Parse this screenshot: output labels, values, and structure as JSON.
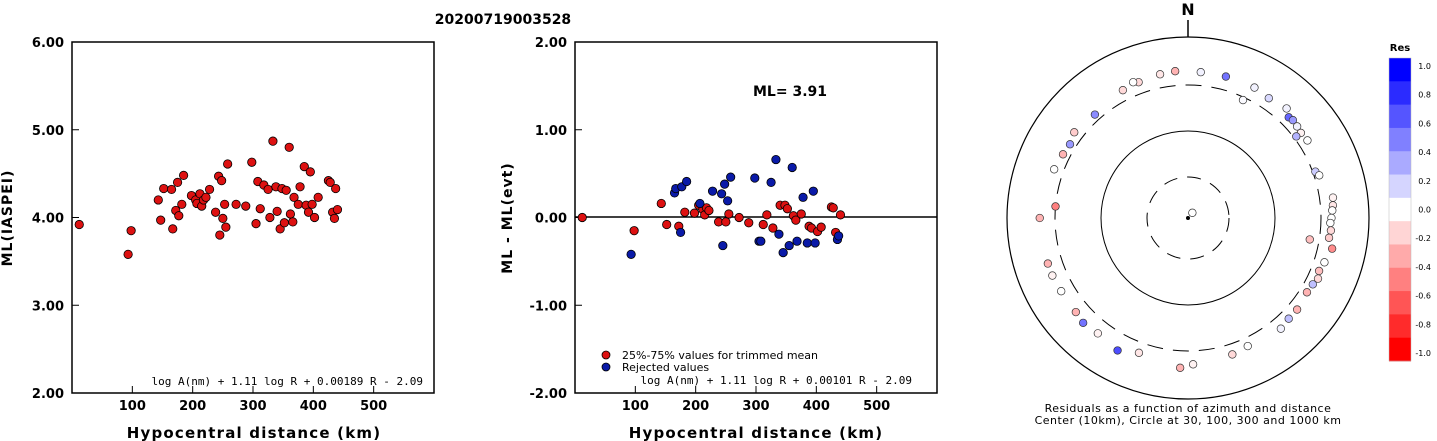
{
  "title": "20200719003528",
  "chart_data": [
    {
      "type": "scatter",
      "xlabel": "Hypocentral distance (km)",
      "ylabel": "ML(IASPEI)",
      "xlim": [
        0,
        600
      ],
      "ylim": [
        2.0,
        6.0
      ],
      "xticks": [
        "100",
        "200",
        "300",
        "400",
        "500"
      ],
      "yticks": [
        "2.00",
        "3.00",
        "4.00",
        "5.00",
        "6.00"
      ],
      "formula": "log A(nm) + 1.11 log R + 0.00189 R - 2.09",
      "point_color": "#dd1111",
      "points": [
        [
          12,
          3.92
        ],
        [
          93,
          3.58
        ],
        [
          98,
          3.85
        ],
        [
          143,
          4.2
        ],
        [
          147,
          3.97
        ],
        [
          152,
          4.33
        ],
        [
          165,
          4.32
        ],
        [
          167,
          3.87
        ],
        [
          172,
          4.08
        ],
        [
          175,
          4.4
        ],
        [
          177,
          4.02
        ],
        [
          182,
          4.15
        ],
        [
          185,
          4.48
        ],
        [
          198,
          4.25
        ],
        [
          205,
          4.2
        ],
        [
          207,
          4.16
        ],
        [
          212,
          4.27
        ],
        [
          215,
          4.13
        ],
        [
          218,
          4.2
        ],
        [
          222,
          4.23
        ],
        [
          228,
          4.32
        ],
        [
          238,
          4.06
        ],
        [
          243,
          4.47
        ],
        [
          245,
          3.8
        ],
        [
          248,
          4.42
        ],
        [
          250,
          3.99
        ],
        [
          253,
          4.15
        ],
        [
          255,
          3.89
        ],
        [
          258,
          4.61
        ],
        [
          272,
          4.15
        ],
        [
          288,
          4.13
        ],
        [
          298,
          4.63
        ],
        [
          305,
          3.93
        ],
        [
          308,
          4.41
        ],
        [
          312,
          4.1
        ],
        [
          318,
          4.37
        ],
        [
          325,
          4.32
        ],
        [
          328,
          4.0
        ],
        [
          333,
          4.87
        ],
        [
          338,
          4.35
        ],
        [
          340,
          4.07
        ],
        [
          345,
          3.87
        ],
        [
          348,
          4.33
        ],
        [
          352,
          3.94
        ],
        [
          355,
          4.31
        ],
        [
          360,
          4.8
        ],
        [
          362,
          4.04
        ],
        [
          366,
          3.95
        ],
        [
          368,
          4.23
        ],
        [
          375,
          4.15
        ],
        [
          378,
          4.35
        ],
        [
          385,
          4.58
        ],
        [
          388,
          4.14
        ],
        [
          392,
          4.06
        ],
        [
          395,
          4.52
        ],
        [
          398,
          4.15
        ],
        [
          402,
          4.0
        ],
        [
          408,
          4.23
        ],
        [
          425,
          4.42
        ],
        [
          428,
          4.4
        ],
        [
          432,
          4.06
        ],
        [
          435,
          3.99
        ],
        [
          437,
          4.33
        ],
        [
          440,
          4.09
        ]
      ]
    },
    {
      "type": "scatter",
      "xlabel": "Hypocentral distance (km)",
      "ylabel": "ML - ML(evt)",
      "xlim": [
        0,
        600
      ],
      "ylim": [
        -2.0,
        2.0
      ],
      "xticks": [
        "100",
        "200",
        "300",
        "400",
        "500"
      ],
      "yticks": [
        "-2.00",
        "-1.00",
        "0.00",
        "1.00",
        "2.00"
      ],
      "annotation": "ML= 3.91",
      "formula": "log A(nm) + 1.11 log R + 0.00101 R - 2.09",
      "legend": [
        {
          "label": "25%-75% values for trimmed mean",
          "color": "#dd1111"
        },
        {
          "label": "Rejected values",
          "color": "#0a1aa8"
        }
      ],
      "series": [
        {
          "name": "25%-75% values for trimmed mean",
          "color": "#dd1111",
          "points": [
            [
              12,
              0.0
            ],
            [
              98,
              -0.15
            ],
            [
              143,
              0.16
            ],
            [
              152,
              -0.08
            ],
            [
              172,
              -0.1
            ],
            [
              182,
              0.06
            ],
            [
              198,
              0.05
            ],
            [
              205,
              0.14
            ],
            [
              212,
              0.09
            ],
            [
              215,
              0.03
            ],
            [
              218,
              0.11
            ],
            [
              222,
              0.08
            ],
            [
              238,
              -0.05
            ],
            [
              250,
              -0.05
            ],
            [
              255,
              0.04
            ],
            [
              272,
              0.0
            ],
            [
              288,
              -0.06
            ],
            [
              312,
              -0.08
            ],
            [
              318,
              0.03
            ],
            [
              328,
              -0.12
            ],
            [
              340,
              0.14
            ],
            [
              348,
              0.14
            ],
            [
              352,
              0.1
            ],
            [
              362,
              0.02
            ],
            [
              366,
              -0.03
            ],
            [
              375,
              0.04
            ],
            [
              388,
              -0.1
            ],
            [
              392,
              -0.12
            ],
            [
              402,
              -0.16
            ],
            [
              408,
              -0.11
            ],
            [
              425,
              0.12
            ],
            [
              428,
              0.11
            ],
            [
              432,
              -0.17
            ],
            [
              440,
              0.03
            ]
          ]
        },
        {
          "name": "Rejected values",
          "color": "#0a1aa8",
          "points": [
            [
              93,
              -0.42
            ],
            [
              165,
              0.28
            ],
            [
              167,
              0.33
            ],
            [
              175,
              -0.17
            ],
            [
              177,
              0.35
            ],
            [
              185,
              0.41
            ],
            [
              207,
              0.16
            ],
            [
              228,
              0.3
            ],
            [
              243,
              0.27
            ],
            [
              245,
              -0.32
            ],
            [
              248,
              0.38
            ],
            [
              253,
              0.19
            ],
            [
              258,
              0.46
            ],
            [
              298,
              0.45
            ],
            [
              305,
              -0.27
            ],
            [
              308,
              -0.27
            ],
            [
              325,
              0.4
            ],
            [
              333,
              0.66
            ],
            [
              338,
              -0.19
            ],
            [
              345,
              -0.4
            ],
            [
              355,
              -0.32
            ],
            [
              360,
              0.57
            ],
            [
              368,
              -0.27
            ],
            [
              378,
              0.23
            ],
            [
              385,
              -0.29
            ],
            [
              395,
              0.3
            ],
            [
              398,
              -0.29
            ],
            [
              435,
              -0.25
            ],
            [
              437,
              -0.21
            ]
          ]
        }
      ]
    },
    {
      "type": "scatter",
      "subtype": "polar",
      "north_label": "N",
      "caption": [
        "Residuals as a function of azimuth and distance",
        "Center (10km), Circle at 30, 100, 300 and 1000 km"
      ],
      "colorbar": {
        "title": "Res",
        "ticks": [
          "1.0",
          "0.8",
          "0.6",
          "0.4",
          "0.2",
          "0.0",
          "-0.2",
          "-0.4",
          "-0.6",
          "-0.8",
          "-1.0"
        ],
        "steps": [
          "#0000ff",
          "#2b2bff",
          "#5555ff",
          "#8080ff",
          "#aaaaff",
          "#d5d5ff",
          "#ffffff",
          "#ffd5d5",
          "#ffaaaa",
          "#ff8080",
          "#ff5555",
          "#ff2b2b",
          "#ff0000"
        ]
      },
      "stations": [
        {
          "azimuth": 40,
          "distance": 12,
          "residual": 0.0
        },
        {
          "azimuth": 25,
          "distance": 280,
          "residual": 0.02
        },
        {
          "azimuth": 5,
          "distance": 420,
          "residual": 0.05
        },
        {
          "azimuth": 349,
          "distance": 420,
          "residual": -0.1
        },
        {
          "azimuth": 340,
          "distance": 400,
          "residual": -0.15
        },
        {
          "azimuth": 15,
          "distance": 420,
          "residual": 0.55
        },
        {
          "azimuth": 27,
          "distance": 420,
          "residual": 0.05
        },
        {
          "azimuth": 34,
          "distance": 400,
          "residual": 0.15
        },
        {
          "azimuth": 42,
          "distance": 430,
          "residual": 0.05
        },
        {
          "azimuth": 45,
          "distance": 380,
          "residual": 0.6
        },
        {
          "azimuth": 47,
          "distance": 390,
          "residual": 0.4
        },
        {
          "azimuth": 50,
          "distance": 380,
          "residual": 0.05
        },
        {
          "azimuth": 53,
          "distance": 370,
          "residual": -0.05
        },
        {
          "azimuth": 57,
          "distance": 380,
          "residual": 0.0
        },
        {
          "azimuth": 53,
          "distance": 320,
          "residual": 0.3
        },
        {
          "azimuth": 70,
          "distance": 320,
          "residual": 0.2
        },
        {
          "azimuth": 72,
          "distance": 340,
          "residual": 0.0
        },
        {
          "azimuth": 82,
          "distance": 420,
          "residual": -0.05
        },
        {
          "azimuth": 85,
          "distance": 410,
          "residual": -0.1
        },
        {
          "azimuth": 87,
          "distance": 400,
          "residual": 0.0
        },
        {
          "azimuth": 90,
          "distance": 390,
          "residual": 0.0
        },
        {
          "azimuth": 92,
          "distance": 380,
          "residual": 0.0
        },
        {
          "azimuth": 95,
          "distance": 390,
          "residual": -0.15
        },
        {
          "azimuth": 98,
          "distance": 380,
          "residual": -0.2
        },
        {
          "azimuth": 102,
          "distance": 430,
          "residual": -0.45
        },
        {
          "azimuth": 100,
          "distance": 240,
          "residual": -0.25
        },
        {
          "azimuth": 108,
          "distance": 390,
          "residual": 0.0
        },
        {
          "azimuth": 112,
          "distance": 370,
          "residual": -0.25
        },
        {
          "azimuth": 115,
          "distance": 390,
          "residual": -0.15
        },
        {
          "azimuth": 118,
          "distance": 370,
          "residual": 0.25
        },
        {
          "azimuth": 122,
          "distance": 360,
          "residual": -0.3
        },
        {
          "azimuth": 130,
          "distance": 380,
          "residual": -0.3
        },
        {
          "azimuth": 135,
          "distance": 380,
          "residual": 0.25
        },
        {
          "azimuth": 140,
          "distance": 400,
          "residual": 0.05
        },
        {
          "azimuth": 155,
          "distance": 370,
          "residual": 0.0
        },
        {
          "azimuth": 162,
          "distance": 390,
          "residual": -0.15
        },
        {
          "azimuth": 178,
          "distance": 420,
          "residual": -0.05
        },
        {
          "azimuth": 183,
          "distance": 460,
          "residual": -0.3
        },
        {
          "azimuth": 200,
          "distance": 390,
          "residual": -0.1
        },
        {
          "azimuth": 208,
          "distance": 460,
          "residual": 0.7
        },
        {
          "azimuth": 218,
          "distance": 420,
          "residual": -0.05
        },
        {
          "azimuth": 225,
          "distance": 440,
          "residual": 0.55
        },
        {
          "azimuth": 230,
          "distance": 420,
          "residual": -0.3
        },
        {
          "azimuth": 240,
          "distance": 420,
          "residual": 0.0
        },
        {
          "azimuth": 247,
          "distance": 430,
          "residual": -0.05
        },
        {
          "azimuth": 252,
          "distance": 430,
          "residual": -0.3
        },
        {
          "azimuth": 270,
          "distance": 440,
          "residual": -0.3
        },
        {
          "azimuth": 275,
          "distance": 300,
          "residual": -0.5
        },
        {
          "azimuth": 290,
          "distance": 380,
          "residual": 0.0
        },
        {
          "azimuth": 297,
          "distance": 360,
          "residual": -0.3
        },
        {
          "azimuth": 302,
          "distance": 350,
          "residual": 0.4
        },
        {
          "azimuth": 307,
          "distance": 380,
          "residual": -0.2
        },
        {
          "azimuth": 318,
          "distance": 350,
          "residual": 0.45
        },
        {
          "azimuth": 333,
          "distance": 390,
          "residual": -0.15
        },
        {
          "azimuth": 338,
          "distance": 420,
          "residual": 0.0
        },
        {
          "azimuth": 355,
          "distance": 430,
          "residual": -0.3
        }
      ]
    }
  ]
}
